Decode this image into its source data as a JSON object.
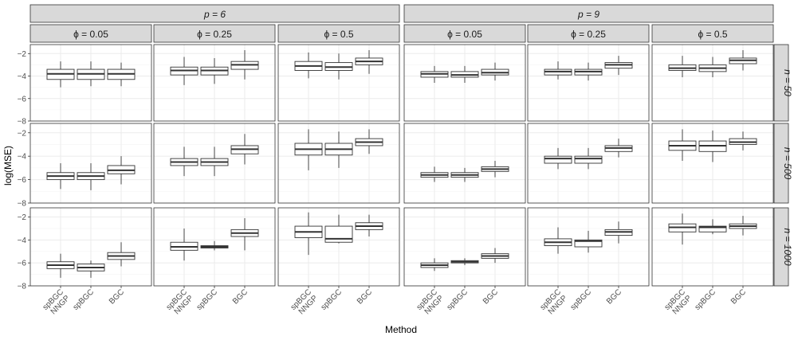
{
  "chart_data": {
    "type": "boxplot",
    "title": "",
    "xlabel": "Method",
    "ylabel": "log(MSE)",
    "ylim": [
      -8,
      -1.2
    ],
    "yticks": [
      -8,
      -6,
      -4,
      -2
    ],
    "grid": true,
    "categories": [
      "spBGC\nNNGP",
      "spBGC",
      "BGC"
    ],
    "p_strips": [
      {
        "key": "p6",
        "label": "p = 6"
      },
      {
        "key": "p9",
        "label": "p = 9"
      }
    ],
    "phi_strips": [
      {
        "label": "ϕ = 0.05"
      },
      {
        "label": "ϕ = 0.25"
      },
      {
        "label": "ϕ = 0.5"
      }
    ],
    "n_strips": [
      {
        "key": "n50",
        "label": "n = 50"
      },
      {
        "key": "n500",
        "label": "n = 500"
      },
      {
        "key": "n1000",
        "label": "n = 1000"
      }
    ],
    "colors": {
      "strip_fill": "#d9d9d9",
      "panel_border": "#333333",
      "grid_major": "#ebebeb",
      "grid_minor": "#f5f5f5",
      "box_line": "#333333",
      "text": "#4d4d4d"
    },
    "panels": {
      "n50": {
        "p6": [
          [
            [
              -5.0,
              -4.3,
              -3.8,
              -3.4,
              -2.7
            ],
            [
              -4.9,
              -4.3,
              -3.8,
              -3.4,
              -2.7
            ],
            [
              -4.9,
              -4.3,
              -3.8,
              -3.4,
              -2.8
            ]
          ],
          [
            [
              -4.8,
              -3.9,
              -3.5,
              -3.2,
              -2.3
            ],
            [
              -4.7,
              -3.9,
              -3.5,
              -3.2,
              -2.4
            ],
            [
              -4.3,
              -3.4,
              -3.0,
              -2.7,
              -1.7
            ]
          ],
          [
            [
              -4.2,
              -3.5,
              -3.1,
              -2.7,
              -1.9
            ],
            [
              -4.3,
              -3.5,
              -3.2,
              -2.8,
              -2.0
            ],
            [
              -3.8,
              -3.0,
              -2.7,
              -2.4,
              -1.7
            ]
          ]
        ],
        "p9": [
          [
            [
              -4.6,
              -4.1,
              -3.8,
              -3.6,
              -3.1
            ],
            [
              -4.6,
              -4.1,
              -3.9,
              -3.6,
              -3.1
            ],
            [
              -4.4,
              -3.9,
              -3.7,
              -3.4,
              -2.8
            ]
          ],
          [
            [
              -4.3,
              -3.9,
              -3.6,
              -3.4,
              -2.7
            ],
            [
              -4.4,
              -3.9,
              -3.6,
              -3.4,
              -2.8
            ],
            [
              -3.9,
              -3.3,
              -3.0,
              -2.8,
              -2.2
            ]
          ],
          [
            [
              -4.1,
              -3.5,
              -3.3,
              -3.0,
              -2.2
            ],
            [
              -4.1,
              -3.6,
              -3.3,
              -3.0,
              -2.3
            ],
            [
              -3.5,
              -2.9,
              -2.6,
              -2.4,
              -1.7
            ]
          ]
        ]
      },
      "n500": {
        "p6": [
          [
            [
              -6.8,
              -6.0,
              -5.7,
              -5.4,
              -4.6
            ],
            [
              -6.9,
              -6.0,
              -5.7,
              -5.4,
              -4.6
            ],
            [
              -6.4,
              -5.5,
              -5.2,
              -4.8,
              -4.0
            ]
          ],
          [
            [
              -5.7,
              -4.8,
              -4.5,
              -4.2,
              -3.2
            ],
            [
              -5.7,
              -4.8,
              -4.5,
              -4.2,
              -3.2
            ],
            [
              -4.7,
              -3.8,
              -3.4,
              -3.1,
              -2.1
            ]
          ],
          [
            [
              -5.2,
              -3.9,
              -3.4,
              -2.9,
              -1.7
            ],
            [
              -5.0,
              -3.9,
              -3.4,
              -2.9,
              -1.9
            ],
            [
              -3.8,
              -3.1,
              -2.8,
              -2.5,
              -1.7
            ]
          ]
        ],
        "p9": [
          [
            [
              -6.2,
              -5.8,
              -5.6,
              -5.4,
              -4.9
            ],
            [
              -6.2,
              -5.8,
              -5.6,
              -5.4,
              -5.0
            ],
            [
              -5.8,
              -5.3,
              -5.1,
              -4.9,
              -4.4
            ]
          ],
          [
            [
              -5.1,
              -4.6,
              -4.2,
              -4.0,
              -3.3
            ],
            [
              -5.1,
              -4.6,
              -4.2,
              -4.0,
              -3.3
            ],
            [
              -4.1,
              -3.6,
              -3.3,
              -3.1,
              -2.5
            ]
          ],
          [
            [
              -4.4,
              -3.5,
              -3.1,
              -2.7,
              -1.7
            ],
            [
              -4.5,
              -3.6,
              -3.1,
              -2.7,
              -1.8
            ],
            [
              -3.5,
              -3.0,
              -2.8,
              -2.5,
              -1.9
            ]
          ]
        ]
      },
      "n1000": {
        "p6": [
          [
            [
              -7.3,
              -6.5,
              -6.2,
              -5.9,
              -5.2
            ],
            [
              -7.3,
              -6.7,
              -6.4,
              -6.1,
              -5.8
            ],
            [
              -6.3,
              -5.7,
              -5.4,
              -5.1,
              -4.2
            ]
          ],
          [
            [
              -5.8,
              -4.9,
              -4.6,
              -4.2,
              -3.0
            ],
            [
              -4.9,
              -4.7,
              -4.6,
              -4.5,
              -4.1
            ],
            [
              -4.9,
              -3.7,
              -3.4,
              -3.1,
              -2.1
            ]
          ],
          [
            [
              -5.3,
              -3.8,
              -3.3,
              -2.8,
              -1.6
            ],
            [
              -4.3,
              -4.2,
              -3.9,
              -2.8,
              -1.8
            ],
            [
              -3.7,
              -3.1,
              -2.8,
              -2.5,
              -1.8
            ]
          ]
        ],
        "p9": [
          [
            [
              -6.7,
              -6.4,
              -6.2,
              -6.0,
              -5.6
            ],
            [
              -6.2,
              -6.0,
              -5.9,
              -5.8,
              -5.6
            ],
            [
              -6.0,
              -5.6,
              -5.4,
              -5.2,
              -4.7
            ]
          ],
          [
            [
              -5.2,
              -4.5,
              -4.2,
              -3.9,
              -2.9
            ],
            [
              -5.1,
              -4.6,
              -4.1,
              -4.0,
              -3.2
            ],
            [
              -4.3,
              -3.6,
              -3.3,
              -3.1,
              -2.4
            ]
          ],
          [
            [
              -4.4,
              -3.3,
              -2.9,
              -2.6,
              -1.7
            ],
            [
              -3.5,
              -3.3,
              -2.9,
              -2.8,
              -2.2
            ],
            [
              -3.6,
              -3.0,
              -2.8,
              -2.6,
              -1.9
            ]
          ]
        ]
      }
    }
  }
}
